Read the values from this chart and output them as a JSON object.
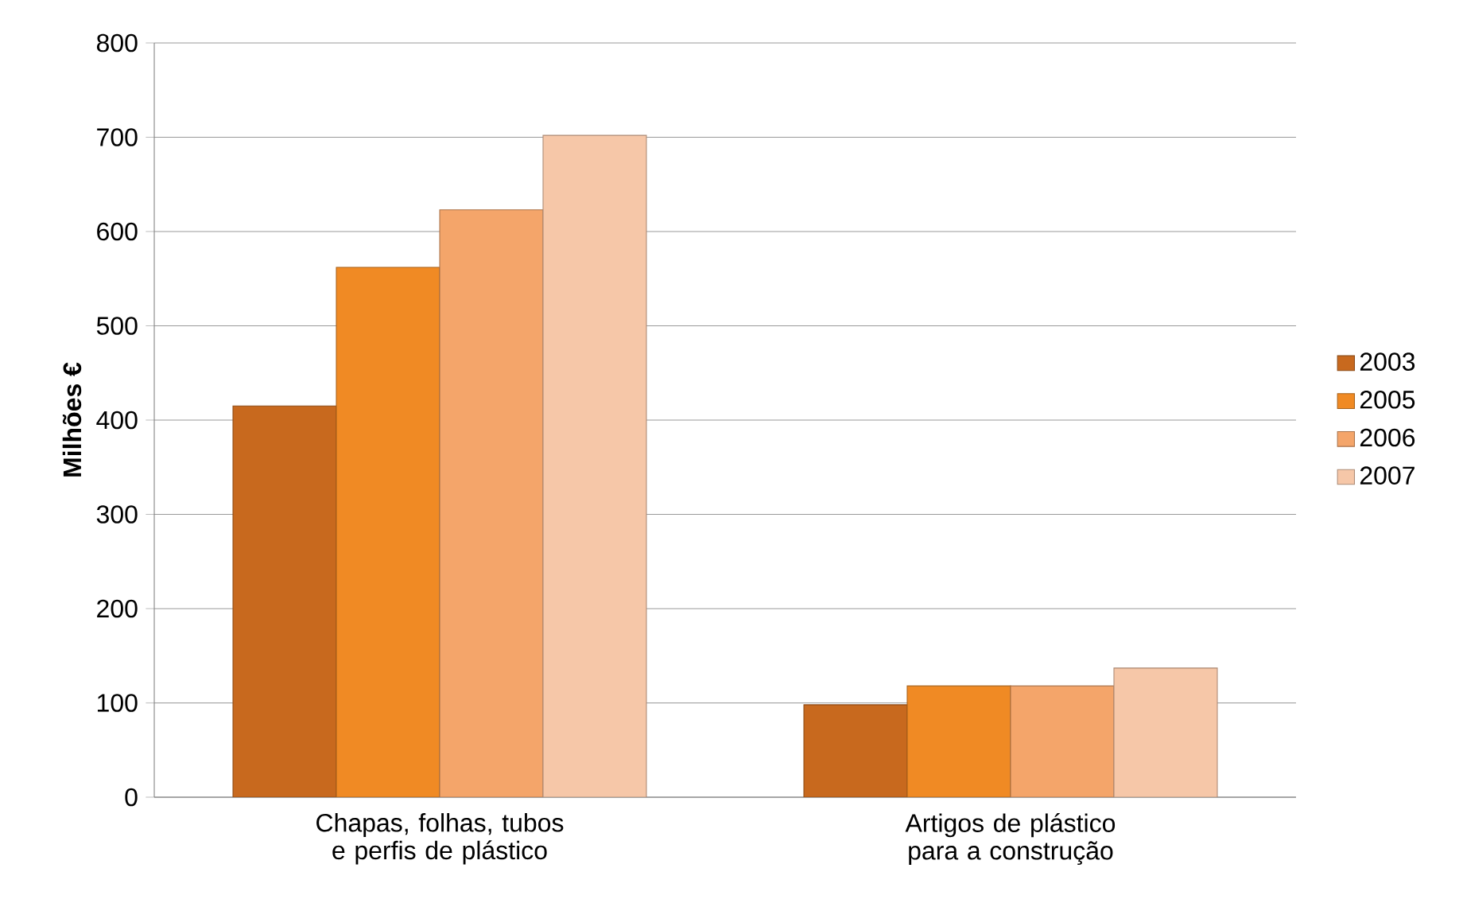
{
  "chart_data": {
    "type": "bar",
    "ylabel": "Milhões €",
    "categories": [
      "Chapas, folhas, tubos e perfis de plástico",
      "Artigos de plástico para a construção"
    ],
    "series": [
      {
        "name": "2003",
        "color": "#c8691e",
        "values": [
          415,
          98
        ]
      },
      {
        "name": "2005",
        "color": "#f08a24",
        "values": [
          562,
          118
        ]
      },
      {
        "name": "2006",
        "color": "#f4a56a",
        "values": [
          623,
          118
        ]
      },
      {
        "name": "2007",
        "color": "#f6c7a8",
        "values": [
          702,
          137
        ]
      }
    ],
    "ylim": [
      0,
      800
    ],
    "yticks": [
      0,
      100,
      200,
      300,
      400,
      500,
      600,
      700,
      800
    ],
    "grid": "y",
    "legend": "right"
  }
}
